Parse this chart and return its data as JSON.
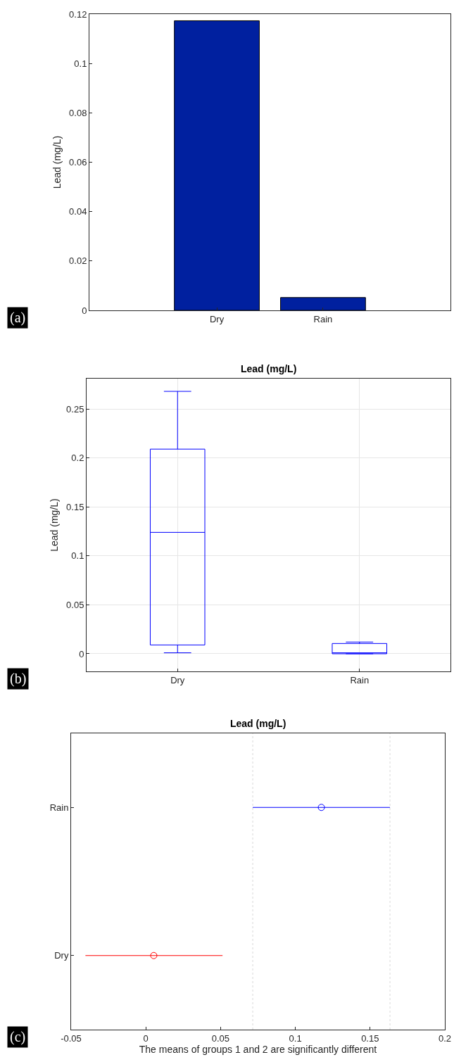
{
  "chart_data": [
    {
      "type": "bar",
      "categories": [
        "Dry",
        "Rain"
      ],
      "values": [
        0.1173,
        0.0052
      ],
      "color": "#00209f",
      "ylabel": "Lead (mg/L)",
      "ylim": [
        0,
        0.12
      ],
      "yticks": [
        0,
        0.02,
        0.04,
        0.06,
        0.08,
        0.1,
        0.12
      ],
      "annotations": [
        "(a)"
      ]
    },
    {
      "type": "box",
      "title": "Lead (mg/L)",
      "ylabel": "Lead (mg/L)",
      "categories": [
        "Dry",
        "Rain"
      ],
      "ylim": [
        -0.018,
        0.281
      ],
      "yticks": [
        0,
        0.05,
        0.1,
        0.15,
        0.2,
        0.25
      ],
      "grid": true,
      "annotations": [
        "(b)"
      ],
      "series": [
        {
          "color": "#0000ff",
          "boxes": [
            {
              "low": 0.001,
              "q1": 0.009,
              "median": 0.124,
              "q3": 0.209,
              "high": 0.268
            },
            {
              "low": 0,
              "q1": 0,
              "median": 0.001,
              "q3": 0.0105,
              "high": 0.012
            }
          ]
        }
      ]
    },
    {
      "type": "scatter",
      "orientation": "horizontal",
      "title": "Lead (mg/L)",
      "xlabel": "The means of groups 1 and 2 are significantly different",
      "categories": [
        "Rain",
        "Dry"
      ],
      "values": [
        0.1174,
        0.0053
      ],
      "errors": [
        [
          0.0715,
          0.1633
        ],
        [
          -0.0404,
          0.0513
        ]
      ],
      "colors": [
        "#0000ff",
        "#ff0000"
      ],
      "marker": "circle",
      "xlim": [
        -0.05,
        0.2
      ],
      "xticks": [
        -0.05,
        0,
        0.05,
        0.1,
        0.15,
        0.2
      ],
      "ref_lines": [
        {
          "axis": "x",
          "value": 0.0715,
          "color": "#d9d9d9",
          "line_style": "dotted"
        },
        {
          "axis": "x",
          "value": 0.1633,
          "color": "#d9d9d9",
          "line_style": "dotted"
        }
      ],
      "annotations": [
        "(c)"
      ]
    }
  ]
}
